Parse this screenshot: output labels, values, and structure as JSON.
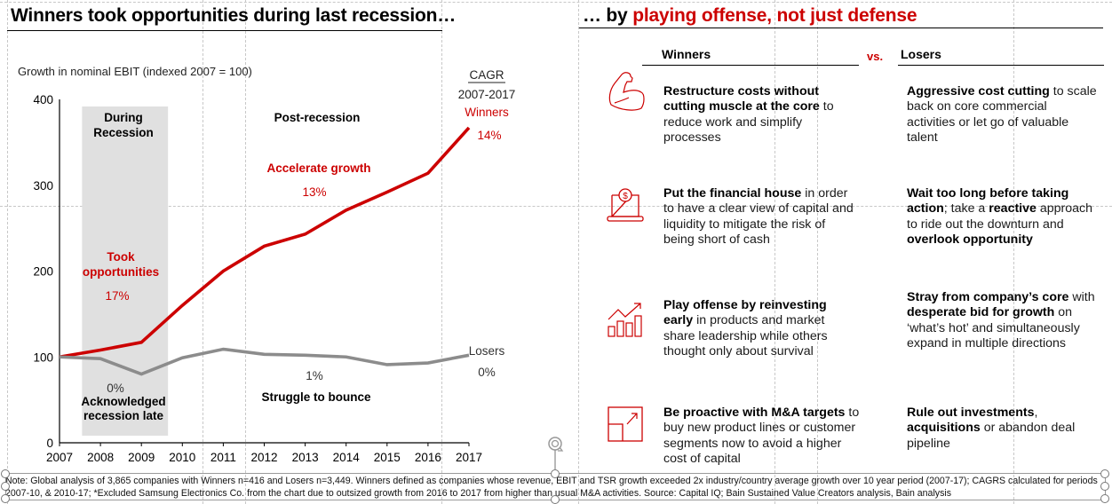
{
  "left": {
    "title": "Winners took opportunities during last recession…"
  },
  "right": {
    "title_prefix": "… by ",
    "title_highlight": "playing offense, not just defense",
    "col_winners": "Winners",
    "vs": "vs.",
    "col_losers": "Losers",
    "rows": [
      {
        "icon": "flexed-arm-icon",
        "winner_bold": "Restructure costs without cutting muscle at the core",
        "winner_rest": " to reduce work and simplify processes",
        "loser_html_parts": [
          {
            "b": true,
            "t": "Aggressive cost cutting"
          },
          {
            "b": false,
            "t": " to scale back on core commercial activities or let go of valuable talent"
          }
        ]
      },
      {
        "icon": "laptop-dollar-icon",
        "winner_bold": "Put the financial house",
        "winner_rest": " in order to have a clear view of capital and liquidity to mitigate the risk of being short of cash",
        "loser_html_parts": [
          {
            "b": true,
            "t": "Wait too long before taking action"
          },
          {
            "b": false,
            "t": "; take a "
          },
          {
            "b": true,
            "t": "reactive"
          },
          {
            "b": false,
            "t": " approach to ride out the downturn and "
          },
          {
            "b": true,
            "t": "overlook opportunity"
          }
        ]
      },
      {
        "icon": "growth-chart-icon",
        "winner_bold": "Play offense by reinvesting early",
        "winner_rest": " in products and market share leadership while others thought only about survival",
        "loser_html_parts": [
          {
            "b": true,
            "t": "Stray from company’s core"
          },
          {
            "b": false,
            "t": " with "
          },
          {
            "b": true,
            "t": "desperate bid for growth"
          },
          {
            "b": false,
            "t": " on ‘what’s hot’ and simultaneously expand in multiple directions"
          }
        ]
      },
      {
        "icon": "expand-square-icon",
        "winner_bold": "Be proactive with M&A targets",
        "winner_rest": " to buy new product lines or customer segments now to avoid a higher cost of capital",
        "loser_html_parts": [
          {
            "b": true,
            "t": "Rule out investments"
          },
          {
            "b": false,
            "t": ", "
          },
          {
            "b": true,
            "t": "acquisitions"
          },
          {
            "b": false,
            "t": " or abandon deal pipeline"
          }
        ]
      }
    ]
  },
  "note": "Note: Global analysis of 3,865 companies with Winners n=416 and Losers n=3,449. Winners defined as companies whose revenue, EBIT and TSR growth exceeded 2x industry/country average growth over 10 year period (2007-17); CAGRS calculated for periods 2007-10, & 2010-17; *Excluded Samsung Electronics Co. from the chart due to outsized growth from 2016 to 2017 from higher than usual M&A activities. Source: Capital IQ; Bain Sustained Value Creators analysis, Bain analysis",
  "colors": {
    "winners": "#cc0000",
    "losers": "#8c8c8c",
    "recession_band": "#e0e0e0"
  },
  "chart_data": {
    "type": "line",
    "title": "Growth in nominal EBIT (indexed 2007 = 100)",
    "xlabel": "",
    "ylabel": "",
    "x": [
      2007,
      2008,
      2009,
      2010,
      2011,
      2012,
      2013,
      2014,
      2015,
      2016,
      2017
    ],
    "ylim": [
      0,
      400
    ],
    "yticks": [
      0,
      100,
      200,
      300,
      400
    ],
    "grid": false,
    "series": [
      {
        "name": "Winners",
        "values": [
          100,
          108,
          117,
          160,
          200,
          229,
          243,
          271,
          292,
          314,
          367
        ]
      },
      {
        "name": "Losers",
        "values": [
          100,
          98,
          80,
          99,
          109,
          103,
          102,
          100,
          91,
          93,
          102
        ]
      }
    ],
    "shaded_region": {
      "from": 2007.55,
      "to": 2009.65,
      "label": "During Recession"
    },
    "cagr_header": "CAGR",
    "cagr_period": "2007-2017",
    "cagr": {
      "Winners": "14%",
      "Losers": "0%"
    },
    "annotations": {
      "post_recession": "Post-recession",
      "winners_recession_label": "Took opportunities",
      "winners_recession_cagr": "17%",
      "winners_post_label": "Accelerate growth",
      "winners_post_cagr": "13%",
      "losers_recession_cagr": "0%",
      "losers_recession_label": "Acknowledged recession late",
      "losers_post_cagr": "1%",
      "losers_post_label": "Struggle to bounce"
    }
  }
}
